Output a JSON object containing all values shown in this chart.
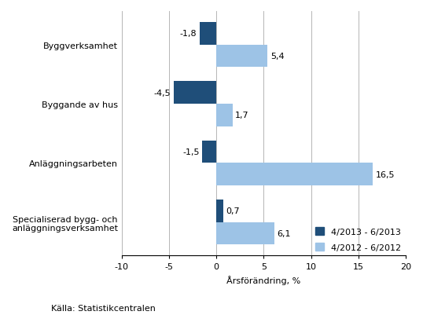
{
  "categories": [
    "Byggverksamhet",
    "Byggande av hus",
    "Anläggningsarbeten",
    "Specialiserad bygg- och\nanläggningsverksamhet"
  ],
  "series1_label": "4/2013 - 6/2013",
  "series2_label": "4/2012 - 6/2012",
  "series1_values": [
    -1.8,
    -4.5,
    -1.5,
    0.7
  ],
  "series2_values": [
    5.4,
    1.7,
    16.5,
    6.1
  ],
  "series1_color": "#1F4E79",
  "series2_color": "#9DC3E6",
  "xlim": [
    -10,
    20
  ],
  "xticks": [
    -10,
    -5,
    0,
    5,
    10,
    15,
    20
  ],
  "xlabel": "Årsförändring, %",
  "source": "Källa: Statistikcentralen",
  "bar_height": 0.38,
  "background_color": "#ffffff",
  "grid_color": "#555555",
  "tick_fontsize": 8,
  "label_fontsize": 8
}
